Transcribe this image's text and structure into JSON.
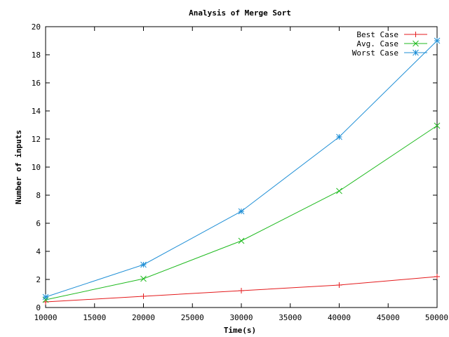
{
  "chart_data": {
    "type": "line",
    "title": "Analysis of Merge Sort",
    "xlabel": "Time(s)",
    "ylabel": "Number of inputs",
    "x": [
      10000,
      20000,
      30000,
      40000,
      50000
    ],
    "xlim": [
      10000,
      50000
    ],
    "ylim": [
      0,
      20
    ],
    "xticks": [
      10000,
      15000,
      20000,
      25000,
      30000,
      35000,
      40000,
      45000,
      50000
    ],
    "yticks": [
      0,
      2,
      4,
      6,
      8,
      10,
      12,
      14,
      16,
      18,
      20
    ],
    "grid": false,
    "legend_position": "top-right",
    "series": [
      {
        "name": "Best Case",
        "color": "#e41a1c",
        "marker": "plus",
        "values": [
          0.4,
          0.8,
          1.2,
          1.6,
          2.2
        ]
      },
      {
        "name": "Avg. Case",
        "color": "#1fba1f",
        "marker": "cross",
        "values": [
          0.55,
          2.05,
          4.75,
          8.3,
          12.95
        ]
      },
      {
        "name": "Worst Case",
        "color": "#1f8fd6",
        "marker": "star",
        "values": [
          0.75,
          3.05,
          6.85,
          12.15,
          19.0
        ]
      }
    ]
  }
}
